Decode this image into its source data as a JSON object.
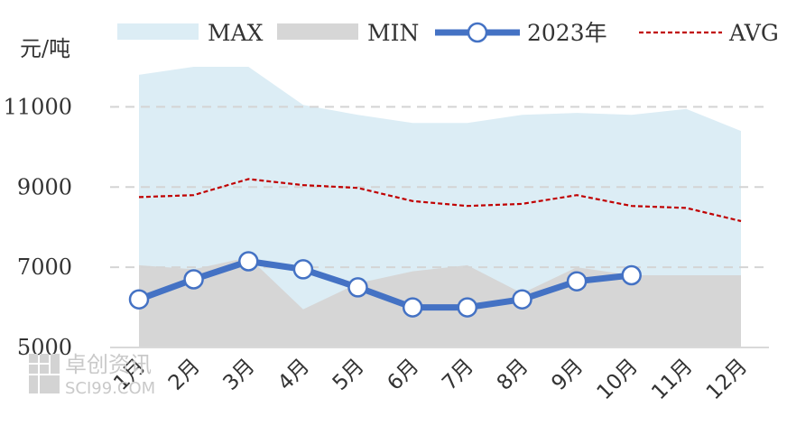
{
  "chart_data": {
    "type": "area",
    "unit_label": "元/吨",
    "categories": [
      "1月",
      "2月",
      "3月",
      "4月",
      "5月",
      "6月",
      "7月",
      "8月",
      "9月",
      "10月",
      "11月",
      "12月"
    ],
    "ylim": [
      5000,
      12000
    ],
    "yticks": [
      5000,
      7000,
      9000,
      11000
    ],
    "grid": true,
    "legend_position": "top",
    "series": [
      {
        "name": "MAX",
        "kind": "area",
        "color": "#dcedf5",
        "values": [
          11800,
          12000,
          12000,
          11050,
          10800,
          10600,
          10600,
          10800,
          10850,
          10800,
          10950,
          10400
        ]
      },
      {
        "name": "MIN",
        "kind": "area",
        "color": "#d6d6d6",
        "values": [
          7050,
          6950,
          7250,
          5950,
          6600,
          6900,
          7050,
          6350,
          7000,
          6800,
          6800,
          6800
        ]
      },
      {
        "name": "2023年",
        "kind": "line-marker",
        "color": "#4472c4",
        "values": [
          6200,
          6700,
          7150,
          6950,
          6500,
          6000,
          6000,
          6200,
          6650,
          6800,
          null,
          null
        ]
      },
      {
        "name": "AVG",
        "kind": "dashed-line",
        "color": "#c00000",
        "values": [
          8750,
          8800,
          9200,
          9050,
          8980,
          8650,
          8530,
          8580,
          8800,
          8530,
          8480,
          8150
        ]
      }
    ]
  },
  "watermark": {
    "logo": "卓创资讯",
    "site": "SCI99.COM"
  }
}
